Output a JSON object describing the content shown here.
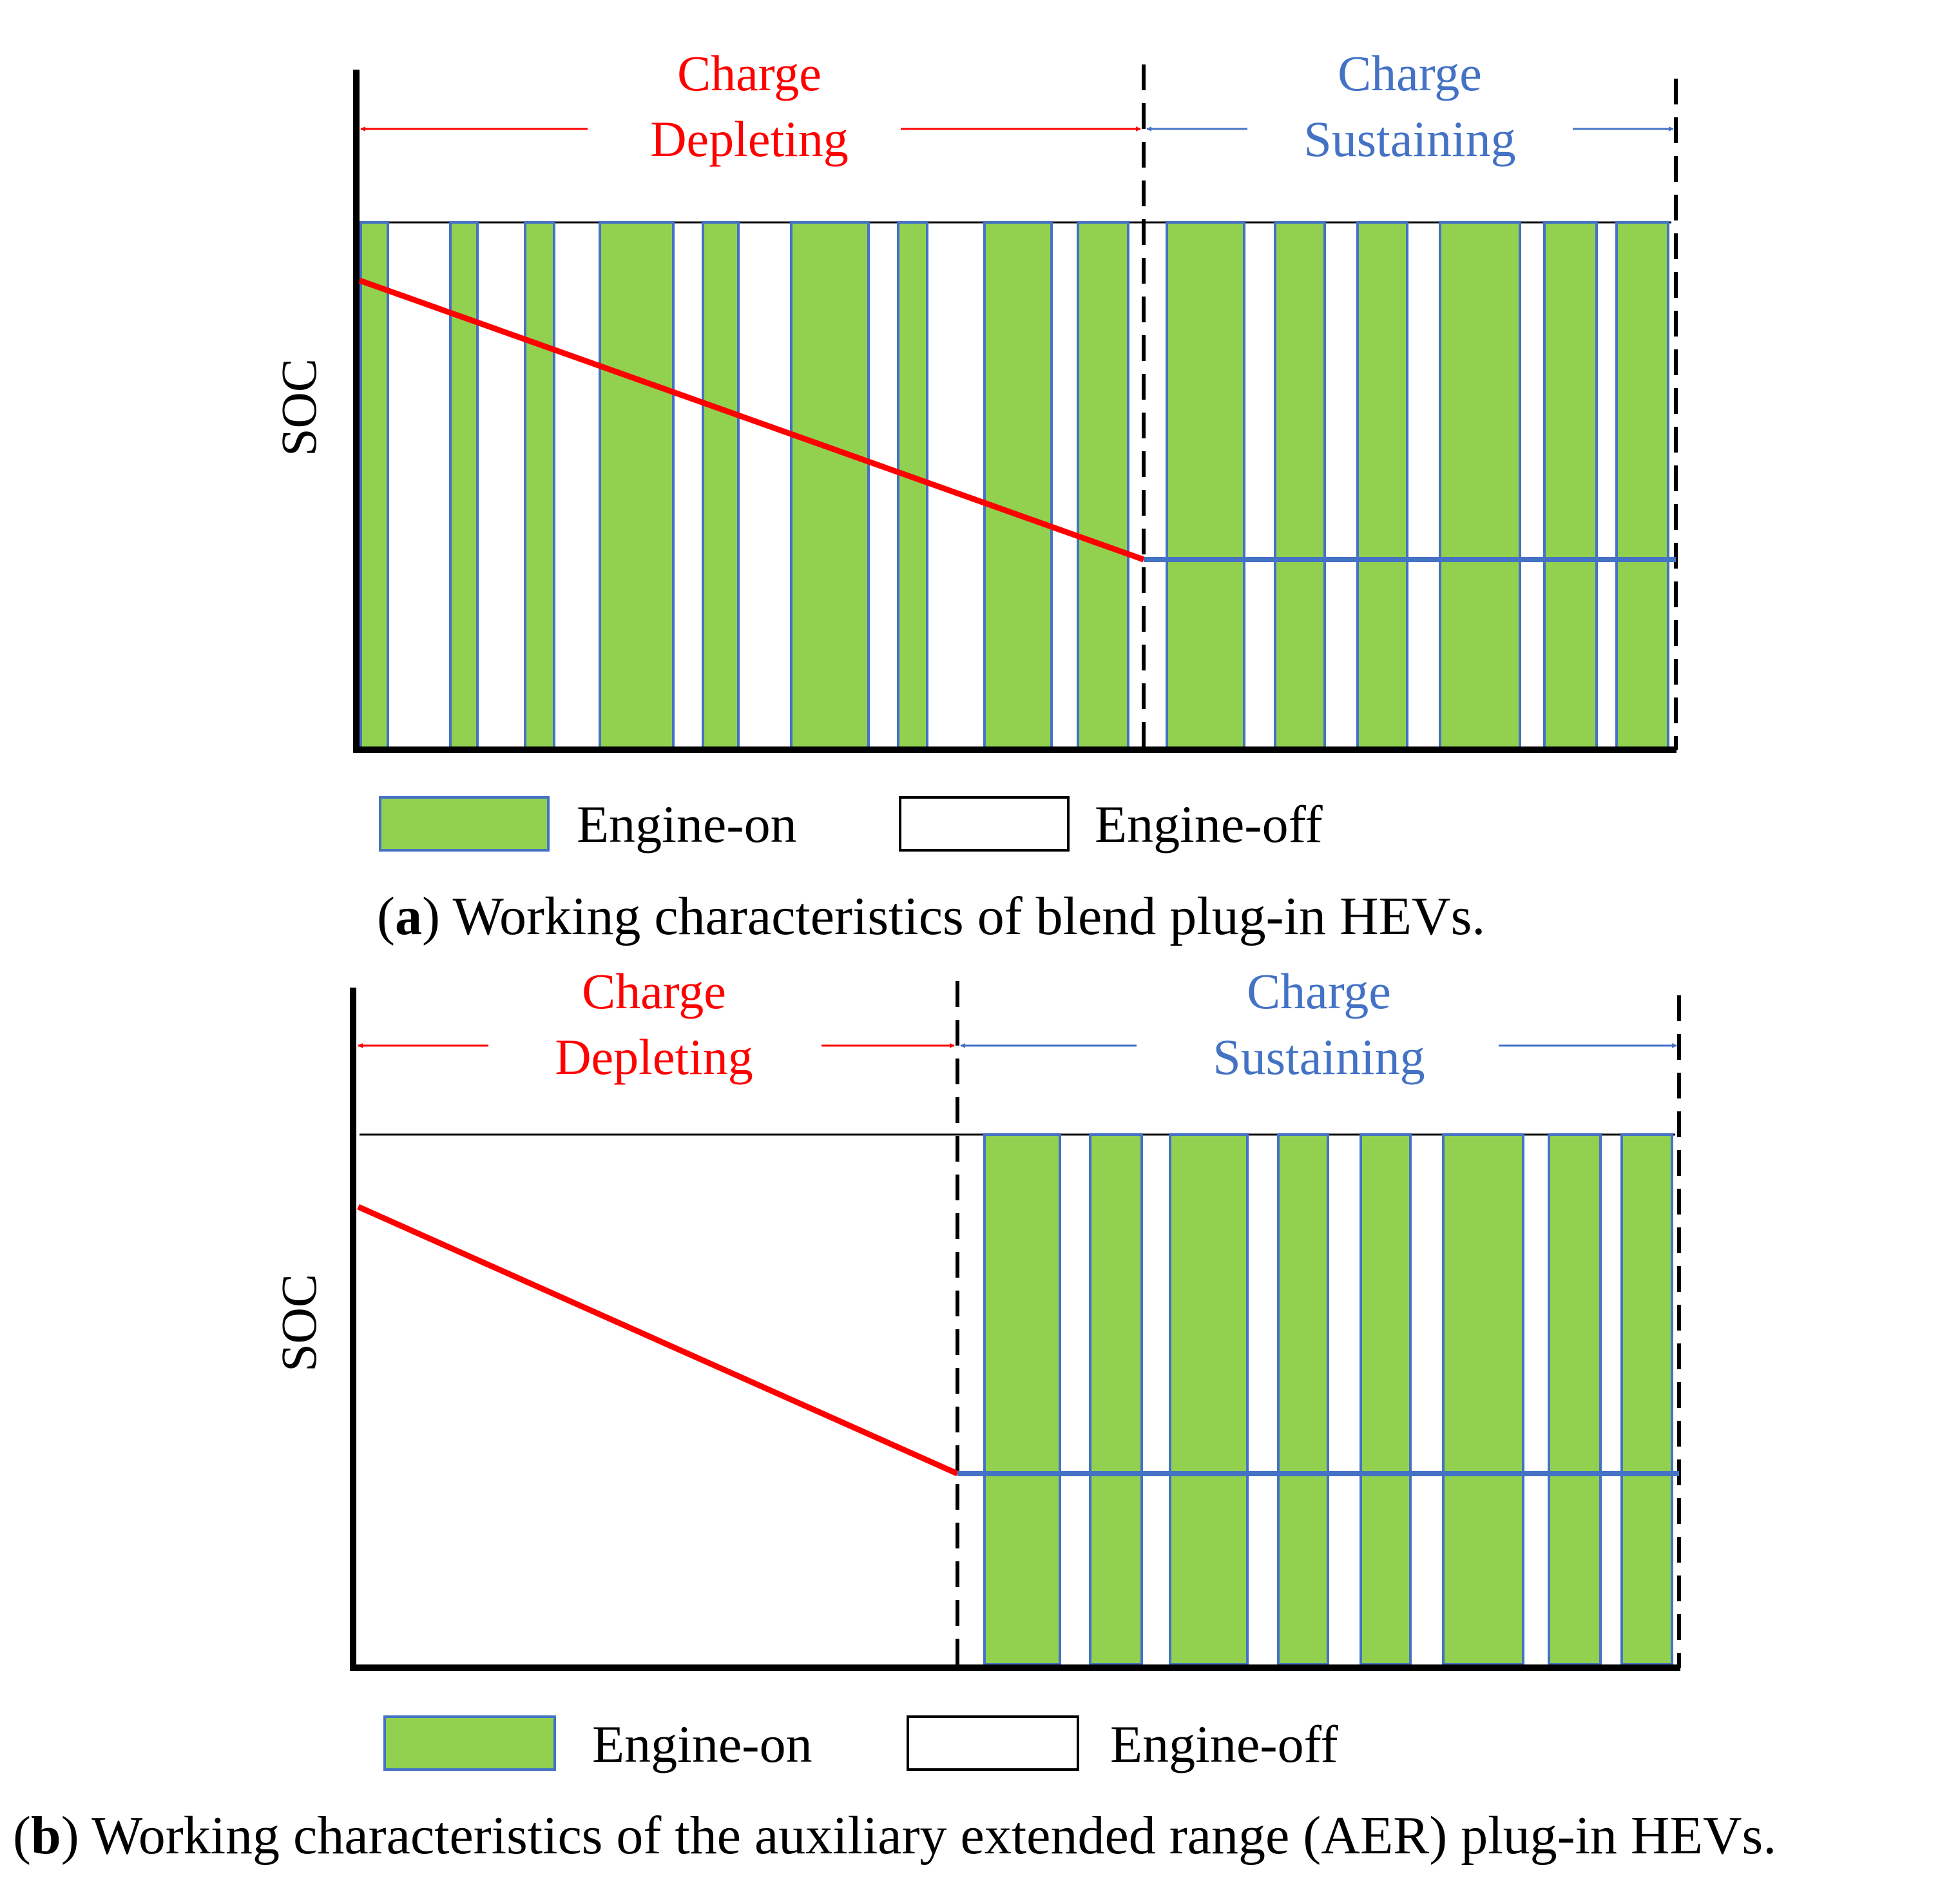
{
  "colors": {
    "charge_depleting": "#ff0000",
    "charge_sustaining": "#4472c4",
    "engine_on_fill": "#92d050",
    "engine_on_border": "#4472c4",
    "axis": "#000000"
  },
  "panels": [
    {
      "y_axis_label": "SOC",
      "cd_label_line1": "Charge",
      "cd_label_line2": "Depleting",
      "cs_label_line1": "Charge",
      "cs_label_line2": "Sustaining",
      "legend_on_label": "Engine-on",
      "legend_off_label": "Engine-off",
      "caption_tag": "a",
      "caption_text": "Working characteristics of blend plug-in HEVs."
    },
    {
      "y_axis_label": "SOC",
      "cd_label_line1": "Charge",
      "cd_label_line2": "Depleting",
      "cs_label_line1": "Charge",
      "cs_label_line2": "Sustaining",
      "legend_on_label": "Engine-on",
      "legend_off_label": "Engine-off",
      "caption_tag": "b",
      "caption_text": "Working characteristics of the auxiliary extended range (AER) plug-in HEVs."
    }
  ]
}
